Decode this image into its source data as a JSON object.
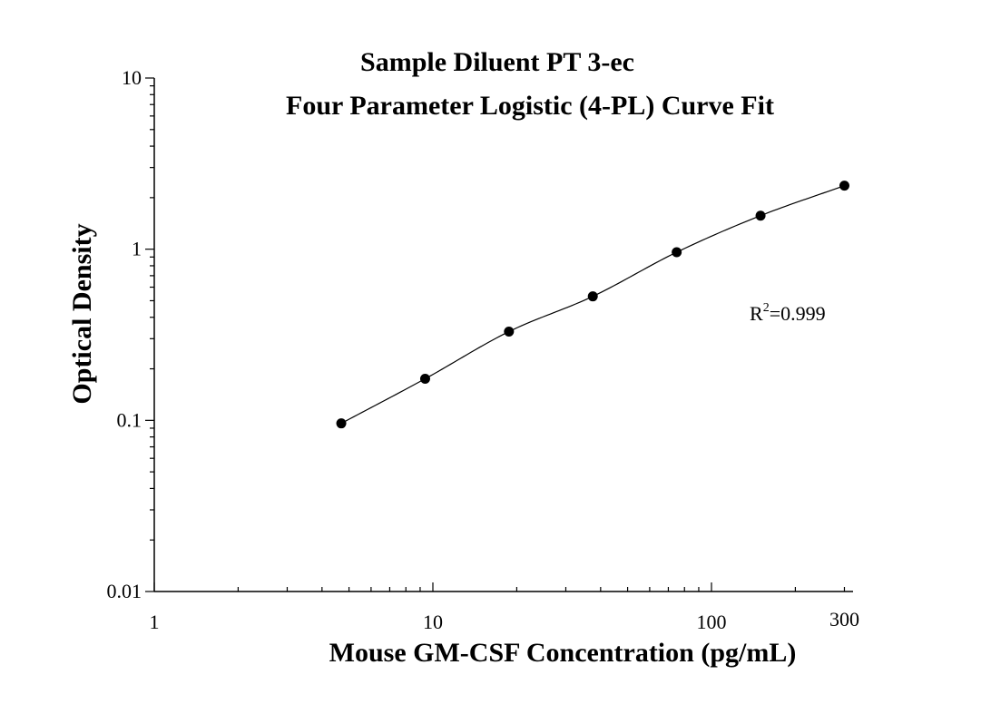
{
  "chart_data": {
    "type": "scatter",
    "title": "Sample Diluent PT 3-ec",
    "subtitle": "Four Parameter Logistic (4-PL) Curve Fit",
    "xlabel": "Mouse GM-CSF Concentration (pg/mL)",
    "ylabel": "Optical Density",
    "x_scale": "log",
    "y_scale": "log",
    "xlim": [
      1,
      300
    ],
    "ylim": [
      0.01,
      10
    ],
    "x_tick_labels": [
      {
        "value": 1,
        "label": "1"
      },
      {
        "value": 10,
        "label": "10"
      },
      {
        "value": 100,
        "label": "100"
      },
      {
        "value": 300,
        "label": "300"
      }
    ],
    "y_tick_labels": [
      {
        "value": 10,
        "label": "10"
      },
      {
        "value": 1,
        "label": "1"
      },
      {
        "value": 0.1,
        "label": "0.1"
      },
      {
        "value": 0.01,
        "label": "0.01"
      }
    ],
    "grid": false,
    "series": [
      {
        "x": [
          4.69,
          9.38,
          18.75,
          37.5,
          75,
          150,
          300
        ],
        "y": [
          0.096,
          0.175,
          0.33,
          0.53,
          0.96,
          1.57,
          2.35
        ],
        "marker_color": "#000000",
        "fit_line": true,
        "line_color": "#000000"
      }
    ],
    "annotation": {
      "base": "R",
      "sup": "2",
      "rest": "=0.999"
    }
  }
}
